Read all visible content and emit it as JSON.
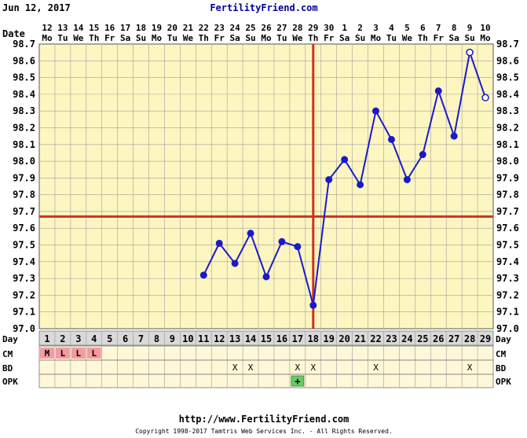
{
  "header": {
    "date_text": "Jun 12, 2017",
    "site_name": "FertilityFriend.com"
  },
  "footer": {
    "url": "http://www.FertilityFriend.com",
    "copyright": "Copyright 1998-2017 Tamtris Web Services Inc. - All Rights Reserved."
  },
  "labels": {
    "date_row": "Date",
    "day_row": "Day",
    "cm_row": "CM",
    "bd_row": "BD",
    "opk_row": "OPK"
  },
  "colors": {
    "grid_bg": "#fdf6c0",
    "row_bg": "#fef8d8",
    "day_row_bg": "#d9d9d9",
    "line": "#1a1acc",
    "marker": "#1a1acc",
    "coverline": "#cc3322",
    "ovulation_line": "#cc3322",
    "cm_menstrual": "#f39aa2",
    "opk_positive": "#66cc66",
    "site_name": "#000099"
  },
  "chart_data": {
    "type": "line",
    "dates": [
      "12",
      "13",
      "14",
      "15",
      "16",
      "17",
      "18",
      "19",
      "20",
      "21",
      "22",
      "23",
      "24",
      "25",
      "26",
      "27",
      "28",
      "29",
      "30",
      "1",
      "2",
      "3",
      "4",
      "5",
      "6",
      "7",
      "8",
      "9",
      "10"
    ],
    "weekdays": [
      "Mo",
      "Tu",
      "We",
      "Th",
      "Fr",
      "Sa",
      "Su",
      "Mo",
      "Tu",
      "We",
      "Th",
      "Fr",
      "Sa",
      "Su",
      "Mo",
      "Tu",
      "We",
      "Th",
      "Fr",
      "Sa",
      "Su",
      "Mo",
      "Tu",
      "We",
      "Th",
      "Fr",
      "Sa",
      "Su",
      "Mo"
    ],
    "cycle_days": [
      "1",
      "2",
      "3",
      "4",
      "5",
      "6",
      "7",
      "8",
      "9",
      "10",
      "11",
      "12",
      "13",
      "14",
      "15",
      "16",
      "17",
      "18",
      "19",
      "20",
      "21",
      "22",
      "23",
      "24",
      "25",
      "26",
      "27",
      "28",
      "29"
    ],
    "temperatures": [
      null,
      null,
      null,
      null,
      null,
      null,
      null,
      null,
      null,
      null,
      97.32,
      97.51,
      97.39,
      97.57,
      97.31,
      97.52,
      97.49,
      97.14,
      97.89,
      98.01,
      97.86,
      98.3,
      98.13,
      97.89,
      98.04,
      98.42,
      98.15,
      98.65,
      98.38
    ],
    "hollow_points": [
      28,
      29
    ],
    "y_ticks": [
      "97.0",
      "97.1",
      "97.2",
      "97.3",
      "97.4",
      "97.5",
      "97.6",
      "97.7",
      "97.8",
      "97.9",
      "98.0",
      "98.1",
      "98.2",
      "98.3",
      "98.4",
      "98.5",
      "98.6",
      "98.7"
    ],
    "ylim": [
      97.0,
      98.7
    ],
    "coverline": 97.67,
    "ovulation_day": 18,
    "cm": [
      "M",
      "L",
      "L",
      "L"
    ],
    "bd": [
      "",
      "",
      "",
      "",
      "",
      "",
      "",
      "",
      "",
      "",
      "",
      "",
      "X",
      "X",
      "",
      "",
      "X",
      "X",
      "",
      "",
      "",
      "X",
      "",
      "",
      "",
      "",
      "",
      "X",
      ""
    ],
    "bd_mark": "X",
    "opk": [
      "",
      "",
      "",
      "",
      "",
      "",
      "",
      "",
      "",
      "",
      "",
      "",
      "",
      "",
      "",
      "",
      "+",
      "",
      "",
      "",
      "",
      "",
      "",
      "",
      "",
      "",
      "",
      "",
      ""
    ]
  }
}
